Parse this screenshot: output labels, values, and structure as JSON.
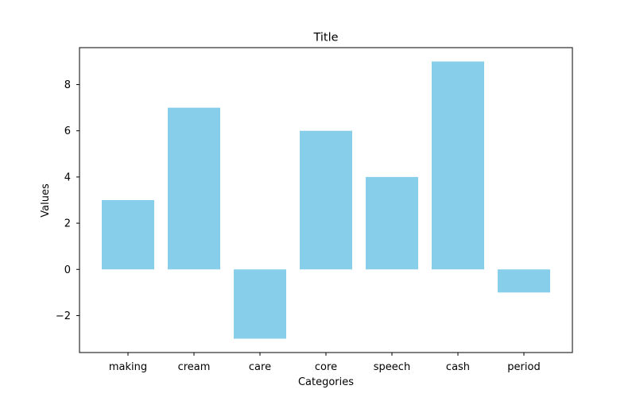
{
  "chart_data": {
    "type": "bar",
    "title": "Title",
    "xlabel": "Categories",
    "ylabel": "Values",
    "categories": [
      "making",
      "cream",
      "care",
      "core",
      "speech",
      "cash",
      "period"
    ],
    "values": [
      3,
      7,
      -3,
      6,
      4,
      9,
      -1
    ],
    "ylim": [
      -3.6,
      9.6
    ],
    "yticks": [
      -2,
      0,
      2,
      4,
      6,
      8
    ],
    "ytick_labels": [
      "−2",
      "0",
      "2",
      "4",
      "6",
      "8"
    ],
    "grid": false,
    "bar_color": "#87ceeb"
  }
}
